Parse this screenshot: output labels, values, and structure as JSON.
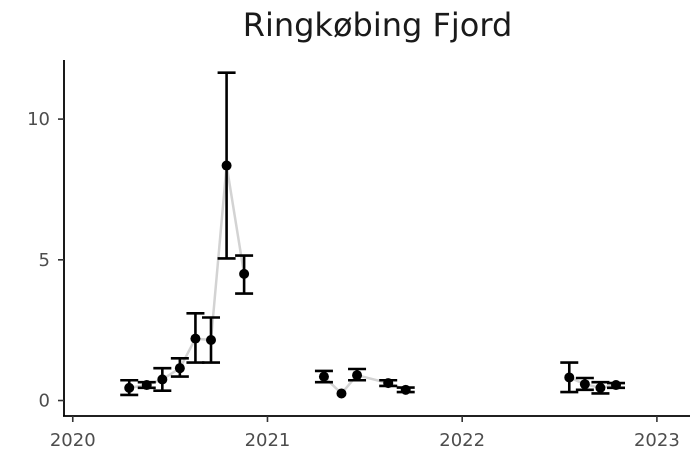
{
  "chart_data": {
    "type": "scatter",
    "title": "Ringkøbing Fjord",
    "xlabel": "",
    "ylabel": "",
    "xlim": [
      2019.955,
      2023.17
    ],
    "ylim": [
      -0.55,
      12.1
    ],
    "x_ticks": [
      2020,
      2021,
      2022,
      2023
    ],
    "x_tick_labels": [
      "2020",
      "2021",
      "2022",
      "2023"
    ],
    "y_ticks": [
      0,
      5,
      10
    ],
    "y_tick_labels": [
      "0",
      "5",
      "10"
    ],
    "grid": false,
    "legend": "none",
    "colors": {
      "points": "#000000",
      "error_bars": "#000000",
      "connector": "#d3d3d3"
    },
    "segments": [
      [
        {
          "x": 2020.29,
          "y": 0.45,
          "lo": 0.2,
          "hi": 0.72
        },
        {
          "x": 2020.38,
          "y": 0.55,
          "lo": 0.45,
          "hi": 0.65
        },
        {
          "x": 2020.46,
          "y": 0.75,
          "lo": 0.35,
          "hi": 1.15
        },
        {
          "x": 2020.55,
          "y": 1.15,
          "lo": 0.85,
          "hi": 1.5
        },
        {
          "x": 2020.63,
          "y": 2.2,
          "lo": 1.35,
          "hi": 3.1
        },
        {
          "x": 2020.71,
          "y": 2.15,
          "lo": 1.35,
          "hi": 2.95
        },
        {
          "x": 2020.79,
          "y": 8.35,
          "lo": 5.05,
          "hi": 11.65
        },
        {
          "x": 2020.88,
          "y": 4.5,
          "lo": 3.8,
          "hi": 5.15
        }
      ],
      [
        {
          "x": 2021.29,
          "y": 0.85,
          "lo": 0.65,
          "hi": 1.05
        },
        {
          "x": 2021.38,
          "y": 0.25,
          "lo": 0.25,
          "hi": 0.25
        },
        {
          "x": 2021.46,
          "y": 0.9,
          "lo": 0.72,
          "hi": 1.12
        },
        {
          "x": 2021.62,
          "y": 0.62,
          "lo": 0.52,
          "hi": 0.72
        },
        {
          "x": 2021.71,
          "y": 0.38,
          "lo": 0.3,
          "hi": 0.46
        }
      ],
      [
        {
          "x": 2022.55,
          "y": 0.82,
          "lo": 0.3,
          "hi": 1.35
        },
        {
          "x": 2022.63,
          "y": 0.58,
          "lo": 0.38,
          "hi": 0.8
        },
        {
          "x": 2022.71,
          "y": 0.45,
          "lo": 0.25,
          "hi": 0.65
        },
        {
          "x": 2022.79,
          "y": 0.55,
          "lo": 0.45,
          "hi": 0.62
        }
      ]
    ]
  }
}
